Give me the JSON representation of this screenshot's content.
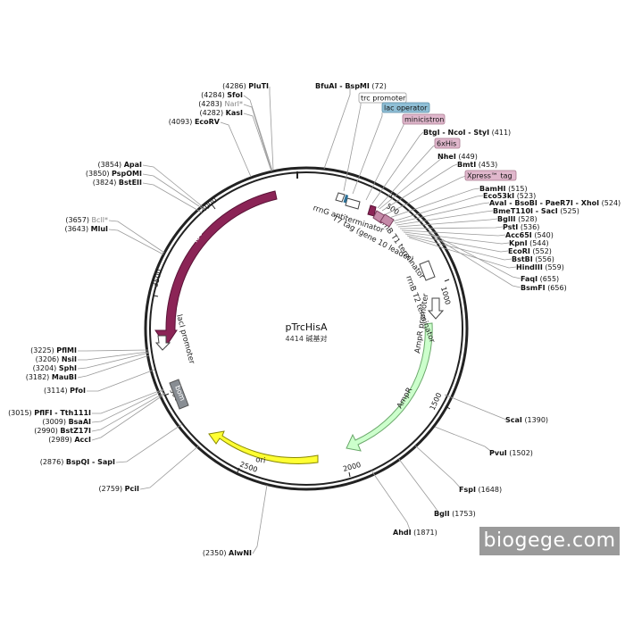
{
  "plasmid": {
    "name": "pTrcHisA",
    "length_label": "4414 碱基对"
  },
  "watermark": "biogege.com",
  "colors": {
    "lacI": "#8b2456",
    "AmpR": "#ccffcc",
    "ori": "#ffff33",
    "promoter": "#ffffff",
    "rop": "#888d93",
    "tags": "#e0b7cc",
    "lac_operator": "#8fbfd6",
    "backbone": "#222222"
  },
  "ticks": [
    "500",
    "1000",
    "1500",
    "2000",
    "2500",
    "3000",
    "3500",
    "4000"
  ],
  "features": [
    {
      "id": "lacI",
      "label": "lacI"
    },
    {
      "id": "AmpR",
      "label": "AmpR"
    },
    {
      "id": "ori",
      "label": "ori"
    },
    {
      "id": "AmpR-promoter",
      "label": "AmpR promoter"
    },
    {
      "id": "lacI-promoter",
      "label": "lacI promoter"
    },
    {
      "id": "rop",
      "label": "bom"
    },
    {
      "id": "rrnG",
      "label": "rrnG antiterminator"
    },
    {
      "id": "T7tag",
      "label": "T7 tag (gene 10 leader)"
    },
    {
      "id": "rrnB-T1",
      "label": "rrnB T1 terminator"
    },
    {
      "id": "rrnB-T2",
      "label": "rrnB T2 terminator"
    }
  ],
  "boxes": [
    {
      "id": "trc",
      "label": "trc promoter"
    },
    {
      "id": "lacop",
      "label": "lac operator"
    },
    {
      "id": "minicistron",
      "label": "minicistron"
    },
    {
      "id": "6xHis",
      "label": "6xHis"
    },
    {
      "id": "xpress",
      "label": "Xpress™ tag"
    }
  ],
  "sites": [
    {
      "name": "PluTI",
      "pos": "(4286)"
    },
    {
      "name": "SfoI",
      "pos": "(4284)"
    },
    {
      "name": "NarI*",
      "pos": "(4283)"
    },
    {
      "name": "KasI",
      "pos": "(4282)"
    },
    {
      "name": "EcoRV",
      "pos": "(4093)"
    },
    {
      "name": "ApaI",
      "pos": "(3854)"
    },
    {
      "name": "PspOMI",
      "pos": "(3850)"
    },
    {
      "name": "BstEII",
      "pos": "(3824)"
    },
    {
      "name": "BclI*",
      "pos": "(3657)"
    },
    {
      "name": "MluI",
      "pos": "(3643)"
    },
    {
      "name": "PflMI",
      "pos": "(3225)"
    },
    {
      "name": "NsiI",
      "pos": "(3206)"
    },
    {
      "name": "SphI",
      "pos": "(3204)"
    },
    {
      "name": "MauBI",
      "pos": "(3182)"
    },
    {
      "name": "PfoI",
      "pos": "(3114)"
    },
    {
      "name": "PflFI - Tth111I",
      "pos": "(3015)"
    },
    {
      "name": "BsaAI",
      "pos": "(3009)"
    },
    {
      "name": "BstZ17I",
      "pos": "(2990)"
    },
    {
      "name": "AccI",
      "pos": "(2989)"
    },
    {
      "name": "BspQI - SapI",
      "pos": "(2876)"
    },
    {
      "name": "PciI",
      "pos": "(2759)"
    },
    {
      "name": "AlwNI",
      "pos": "(2350)"
    },
    {
      "name": "AhdI",
      "pos": "(1871)"
    },
    {
      "name": "BglI",
      "pos": "(1753)"
    },
    {
      "name": "FspI",
      "pos": "(1648)"
    },
    {
      "name": "PvuI",
      "pos": "(1502)"
    },
    {
      "name": "ScaI",
      "pos": "(1390)"
    },
    {
      "name": "BfuAI - BspMI",
      "pos": "(72)"
    },
    {
      "name": "BtgI - NcoI - StyI",
      "pos": "(411)"
    },
    {
      "name": "NheI",
      "pos": "(449)"
    },
    {
      "name": "BmtI",
      "pos": "(453)"
    },
    {
      "name": "BamHI",
      "pos": "(515)"
    },
    {
      "name": "Eco53kI",
      "pos": "(523)"
    },
    {
      "name": "AvaI - BsoBI - PaeR7I - XhoI",
      "pos": "(524)"
    },
    {
      "name": "BmeT110I - SacI",
      "pos": "(525)"
    },
    {
      "name": "BglII",
      "pos": "(528)"
    },
    {
      "name": "PstI",
      "pos": "(536)"
    },
    {
      "name": "Acc65I",
      "pos": "(540)"
    },
    {
      "name": "KpnI",
      "pos": "(544)"
    },
    {
      "name": "EcoRI",
      "pos": "(552)"
    },
    {
      "name": "BstBI",
      "pos": "(556)"
    },
    {
      "name": "HindIII",
      "pos": "(559)"
    },
    {
      "name": "FaqI",
      "pos": "(655)"
    },
    {
      "name": "BsmFI",
      "pos": "(656)"
    }
  ]
}
